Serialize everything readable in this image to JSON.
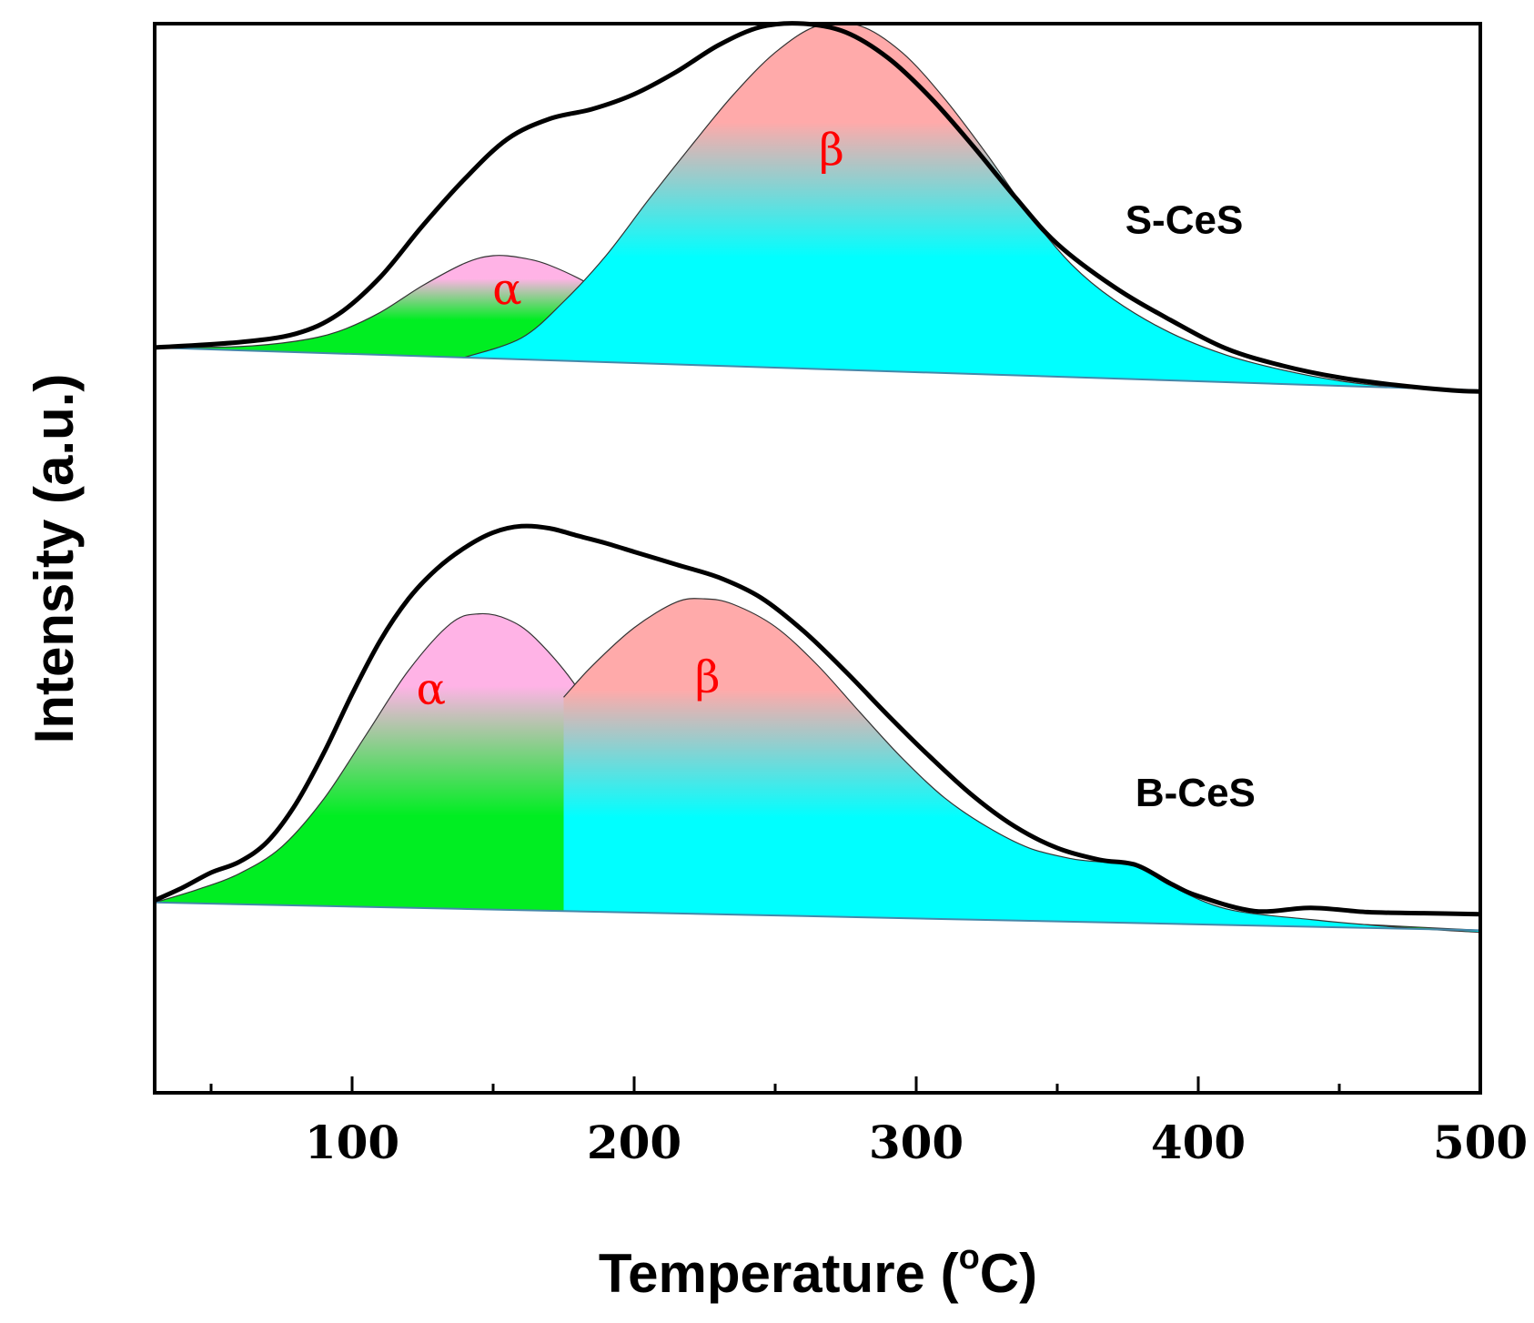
{
  "chart_data": {
    "type": "line",
    "title": "",
    "xlabel": "Temperature (",
    "xlabel_sup": "o",
    "xlabel_unit": "C)",
    "ylabel": "Intensity (a.u.)",
    "xlim": [
      30,
      500
    ],
    "ylim": [
      0,
      100
    ],
    "y_ticks_shown": false,
    "x_major_ticks": [
      100,
      200,
      300,
      400,
      500
    ],
    "x_minor_ticks": [
      50,
      150,
      250,
      350,
      450
    ],
    "x_tick_labels": [
      "100",
      "200",
      "300",
      "400",
      "500"
    ],
    "colors": {
      "alpha_top": "#ffb3e6",
      "alpha_bottom": "#00ee22",
      "beta_top": "#ffaaaa",
      "beta_bottom": "#00ffff",
      "envelope": "#000000",
      "baseline": "#4488aa",
      "peak_label": "#ff0000"
    },
    "samples": [
      {
        "name": "S-CeS",
        "label_x": 395,
        "label_y": 80.4,
        "baseline": {
          "x": [
            30,
            500
          ],
          "y": [
            69.7,
            65.7
          ]
        },
        "envelope": {
          "x": [
            30,
            60,
            80,
            95,
            110,
            125,
            140,
            155,
            170,
            185,
            200,
            215,
            230,
            245,
            260,
            275,
            290,
            305,
            320,
            335,
            350,
            370,
            390,
            410,
            430,
            450,
            470,
            490,
            500
          ],
          "y": [
            69.7,
            70.2,
            71.0,
            72.8,
            76.3,
            81.1,
            85.5,
            89.2,
            91.1,
            92.0,
            93.4,
            95.5,
            98.0,
            99.7,
            100.0,
            99.2,
            96.8,
            93.1,
            88.6,
            83.8,
            79.4,
            75.4,
            72.3,
            69.6,
            68.0,
            66.9,
            66.2,
            65.7,
            65.6
          ]
        },
        "peaks": [
          {
            "name": "α",
            "x": [
              30,
              60,
              80,
              95,
              110,
              125,
              140,
              150,
              160,
              170,
              185,
              200,
              215,
              230,
              250,
              280
            ],
            "y": [
              69.7,
              69.8,
              70.3,
              71.2,
              73.0,
              75.5,
              77.6,
              78.3,
              78.1,
              77.4,
              75.5,
              72.8,
              70.6,
              69.4,
              68.9,
              68.6
            ],
            "label_x": 155,
            "label_y": 73.8
          },
          {
            "name": "β",
            "x": [
              140,
              160,
              175,
              190,
              205,
              220,
              235,
              250,
              265,
              280,
              295,
              310,
              325,
              340,
              355,
              370,
              390,
              410,
              430,
              450,
              470,
              490,
              500
            ],
            "y": [
              68.8,
              70.6,
              74.0,
              78.3,
              83.5,
              88.5,
              93.3,
              97.3,
              99.8,
              99.8,
              97.3,
              93.0,
              87.8,
              82.2,
              77.5,
              74.2,
              71.1,
              69.0,
              67.6,
              66.6,
              66.0,
              65.7,
              65.6
            ],
            "label_x": 270,
            "label_y": 86.8
          }
        ]
      },
      {
        "name": "B-CeS",
        "label_x": 399,
        "label_y": 26.8,
        "baseline": {
          "x": [
            30,
            500
          ],
          "y": [
            17.8,
            15.2
          ]
        },
        "envelope": {
          "x": [
            30,
            40,
            50,
            60,
            70,
            80,
            90,
            100,
            110,
            120,
            130,
            140,
            150,
            160,
            170,
            180,
            190,
            200,
            215,
            230,
            245,
            260,
            275,
            290,
            305,
            320,
            335,
            350,
            365,
            378,
            390,
            400,
            420,
            440,
            460,
            480,
            500
          ],
          "y": [
            18.0,
            19.2,
            20.6,
            21.6,
            23.5,
            27.0,
            31.8,
            37.3,
            42.3,
            46.2,
            49.0,
            51.0,
            52.4,
            53.0,
            52.8,
            52.1,
            51.4,
            50.6,
            49.4,
            48.2,
            46.3,
            43.2,
            39.4,
            35.3,
            31.4,
            27.8,
            24.9,
            22.9,
            21.8,
            21.3,
            19.6,
            18.4,
            17.0,
            17.3,
            16.9,
            16.8,
            16.7
          ]
        },
        "peaks": [
          {
            "name": "α",
            "x": [
              30,
              45,
              60,
              75,
              90,
              105,
              120,
              135,
              145,
              155,
              165,
              180,
              195,
              210,
              225,
              245,
              270,
              300,
              350,
              380,
              410,
              440,
              470,
              500
            ],
            "y": [
              17.8,
              19.0,
              20.5,
              23.0,
              27.5,
              33.5,
              39.5,
              43.9,
              44.8,
              44.3,
              42.5,
              37.8,
              30.9,
              24.8,
              21.3,
              19.6,
              19.0,
              18.9,
              18.6,
              17.8,
              16.8,
              16.0,
              15.6,
              15.2
            ],
            "label_x": 128,
            "label_y": 36.4
          },
          {
            "name": "β",
            "x": [
              175,
              185,
              200,
              215,
              225,
              235,
              250,
              265,
              280,
              295,
              310,
              325,
              340,
              355,
              365,
              378,
              390,
              410,
              440,
              470,
              500
            ],
            "y": [
              37.0,
              39.9,
              43.5,
              45.9,
              46.2,
              45.7,
              43.6,
              40.0,
              35.6,
              31.3,
              27.6,
              24.9,
              22.9,
              21.9,
              21.6,
              21.3,
              19.4,
              17.2,
              16.2,
              15.5,
              15.0
            ],
            "label_x": 226,
            "label_y": 37.5
          }
        ]
      }
    ]
  }
}
